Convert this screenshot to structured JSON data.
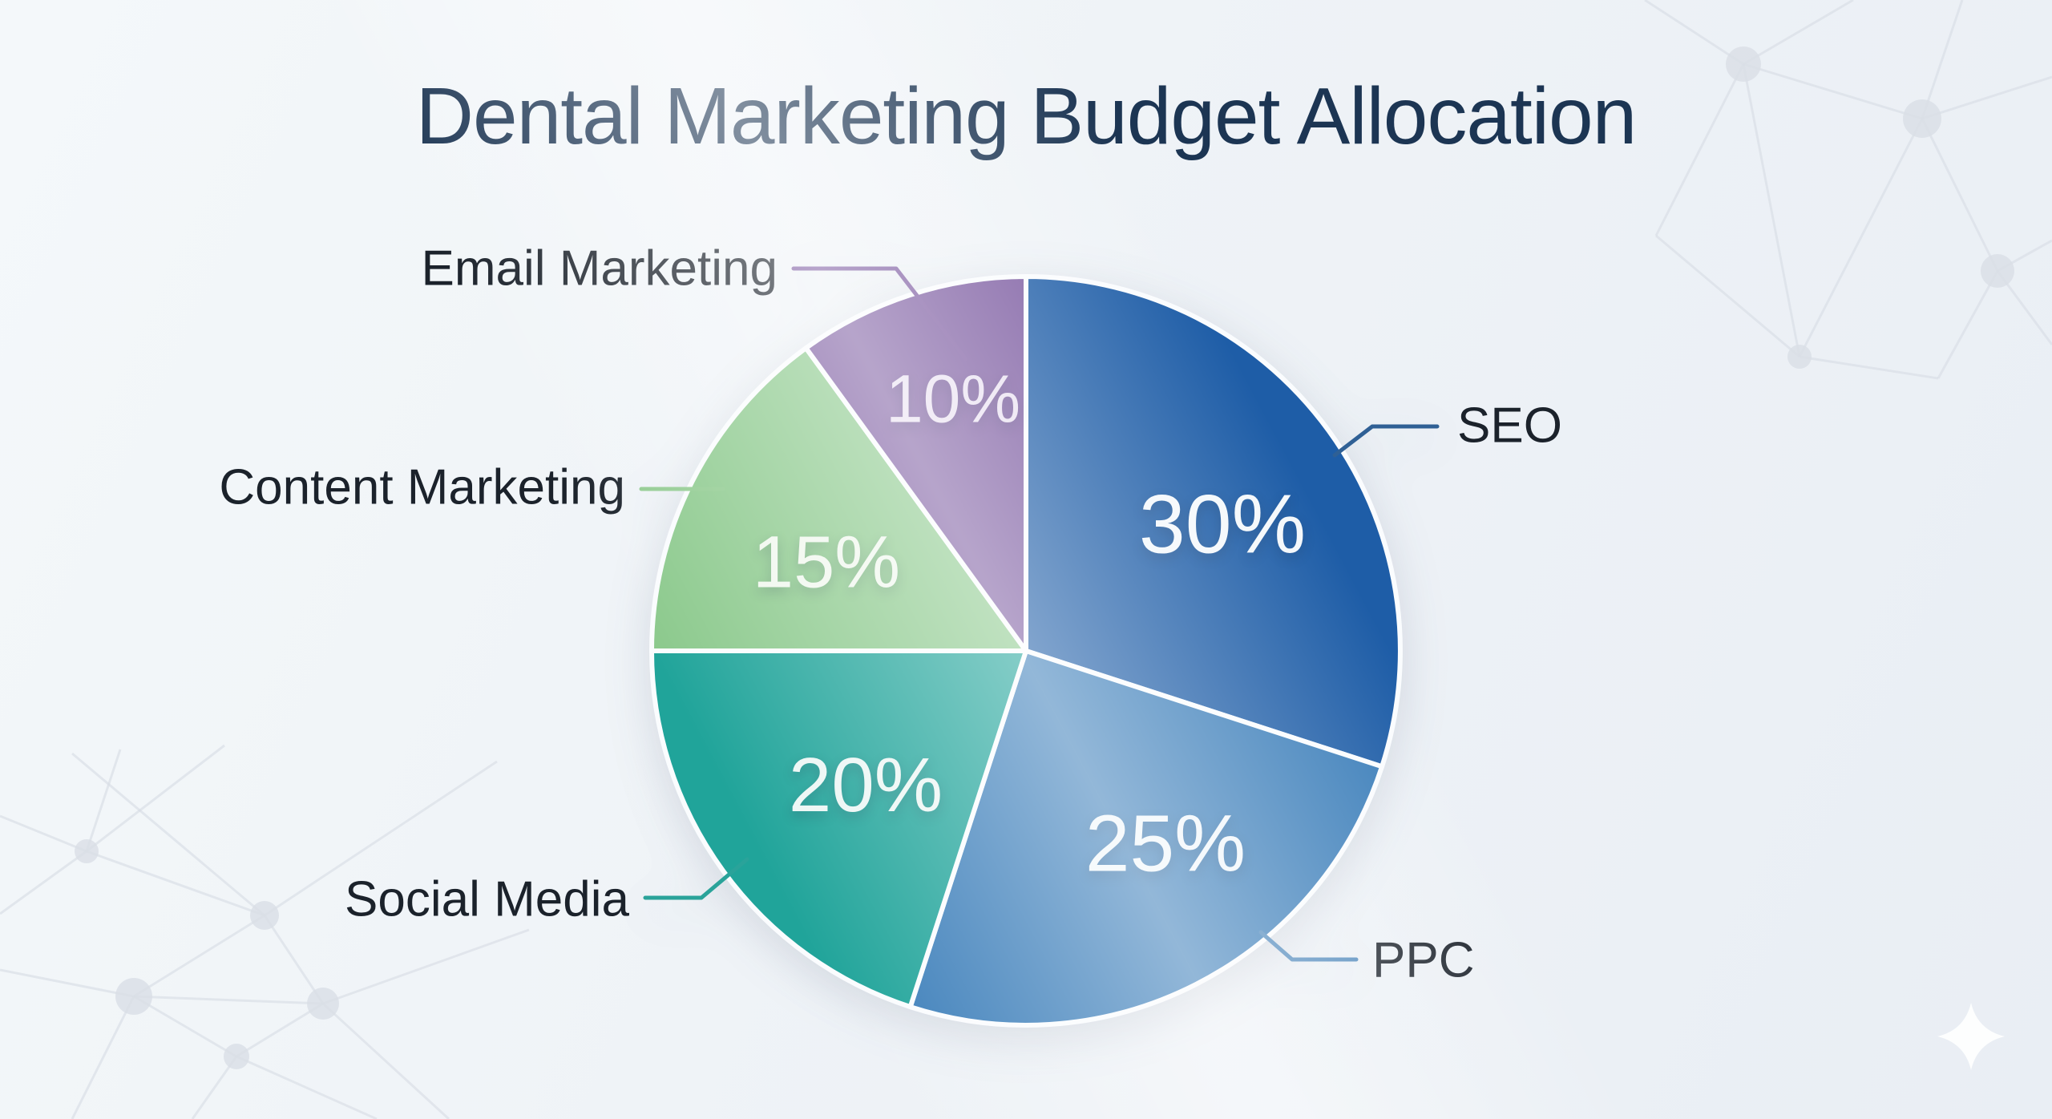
{
  "title": "Dental Marketing Budget Allocation",
  "chart_data": {
    "type": "pie",
    "title": "Dental Marketing Budget Allocation",
    "categories": [
      "SEO",
      "PPC",
      "Social Media",
      "Content Marketing",
      "Email Marketing"
    ],
    "values": [
      30,
      25,
      20,
      15,
      10
    ],
    "unit": "%",
    "slice_labels": [
      "30%",
      "25%",
      "20%",
      "15%",
      "10%"
    ],
    "start_angle_deg": 0,
    "direction": "clockwise",
    "legend_position": "callout-labels-around-pie",
    "colors": [
      "#1e5da7",
      "#3a7db9",
      "#20a49a",
      "#8bc98c",
      "#7b5aa0"
    ]
  },
  "slices": [
    {
      "id": "seo",
      "name": "SEO",
      "value": 30,
      "label": "30%",
      "color": "#1e5da7",
      "leader_color": "#2f6095",
      "value_label_color": "#f4f8fb"
    },
    {
      "id": "ppc",
      "name": "PPC",
      "value": 25,
      "label": "25%",
      "color": "#3a7db9",
      "leader_color": "#4d87bb",
      "value_label_color": "#f0f6fa"
    },
    {
      "id": "social-media",
      "name": "Social Media",
      "value": 20,
      "label": "20%",
      "color": "#20a49a",
      "leader_color": "#2aa39a",
      "value_label_color": "#ecf6f4"
    },
    {
      "id": "content-marketing",
      "name": "Content Marketing",
      "value": 15,
      "label": "15%",
      "color": "#8bc98c",
      "leader_color": "#8fca8e",
      "value_label_color": "#f0f7ee"
    },
    {
      "id": "email-marketing",
      "name": "Email Marketing",
      "value": 10,
      "label": "10%",
      "color": "#7b5aa0",
      "leader_color": "#7d5ba1",
      "value_label_color": "#e9e1f1"
    }
  ],
  "background": {
    "base_colors": [
      "#f4f8fa",
      "#e9eef4"
    ],
    "pattern": "plexus-network-corners",
    "pattern_color": "#d8dde5",
    "sparkle_color": "#ffffff"
  },
  "title_color": "#1c3553",
  "callout_text_color": "#1b222b"
}
